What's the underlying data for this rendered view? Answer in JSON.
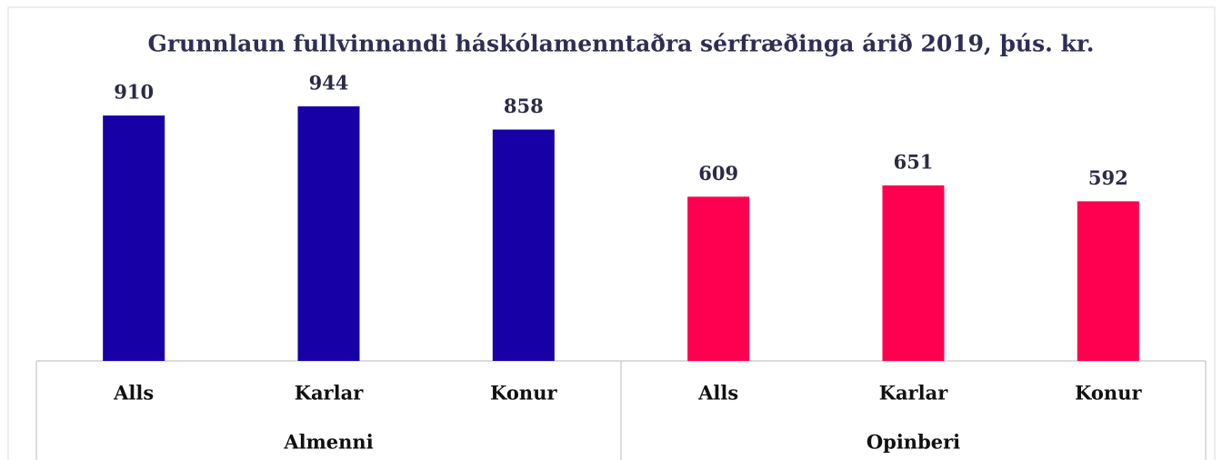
{
  "chart_data": {
    "type": "bar",
    "title": "Grunnlaun fullvinnandi háskólamenntaðra sérfræðinga árið 2019, þús. kr.",
    "groups": [
      {
        "name": "Almenni",
        "color": "#1600a6",
        "categories": [
          "Alls",
          "Karlar",
          "Konur"
        ],
        "values": [
          910,
          944,
          858
        ]
      },
      {
        "name": "Opinberi",
        "color": "#ff0050",
        "categories": [
          "Alls",
          "Karlar",
          "Konur"
        ],
        "values": [
          609,
          651,
          592
        ]
      }
    ]
  }
}
